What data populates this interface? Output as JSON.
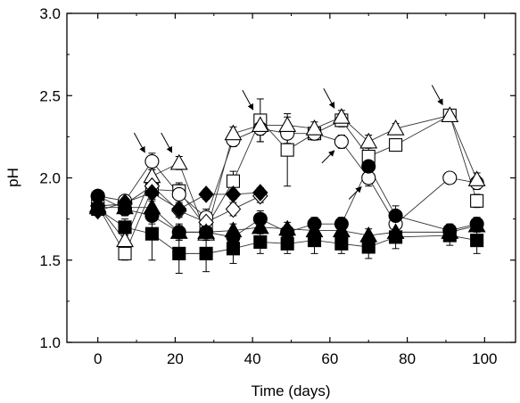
{
  "chart_data": {
    "type": "scatter",
    "xlabel": "Time (days)",
    "ylabel": "pH",
    "xlim": [
      -8,
      108
    ],
    "ylim": [
      1.0,
      3.0
    ],
    "xticks": [
      "0",
      "20",
      "40",
      "60",
      "80",
      "100"
    ],
    "xtick_values": [
      0,
      20,
      40,
      60,
      80,
      100
    ],
    "yticks": [
      "1.0",
      "1.5",
      "2.0",
      "2.5",
      "3.0"
    ],
    "ytick_values": [
      1.0,
      1.5,
      2.0,
      2.5,
      3.0
    ],
    "grid": false,
    "legend": "none",
    "series": [
      {
        "marker": "square",
        "fill": "open",
        "points": [
          [
            0,
            1.83
          ],
          [
            7,
            1.54
          ],
          [
            14,
            1.93
          ],
          [
            21,
            1.92
          ],
          [
            28,
            1.7
          ],
          [
            35,
            1.98
          ],
          [
            42,
            2.35
          ],
          [
            49,
            2.17
          ],
          [
            56,
            2.27
          ],
          [
            63,
            2.35
          ],
          [
            70,
            2.13
          ],
          [
            77,
            2.2
          ],
          [
            91,
            2.38
          ],
          [
            98,
            1.86
          ]
        ],
        "err": [
          0.02,
          0.04,
          0.05,
          0.05,
          0.06,
          0.06,
          0.13,
          0.22,
          0.04,
          0.04,
          0.08,
          0.03,
          0.03,
          0.04
        ]
      },
      {
        "marker": "circle",
        "fill": "open",
        "points": [
          [
            0,
            1.89
          ],
          [
            7,
            1.86
          ],
          [
            14,
            2.1
          ],
          [
            21,
            1.9
          ],
          [
            28,
            1.76
          ],
          [
            35,
            2.23
          ],
          [
            42,
            2.3
          ],
          [
            49,
            2.27
          ],
          [
            56,
            2.27
          ],
          [
            63,
            2.22
          ],
          [
            70,
            2.0
          ],
          [
            77,
            1.72
          ],
          [
            91,
            2.0
          ],
          [
            98,
            1.97
          ]
        ],
        "err": [
          0.02,
          0.03,
          0.05,
          0.06,
          0.05,
          0.04,
          0.08,
          0.06,
          0.04,
          0.04,
          0.05,
          0.05,
          0.03,
          0.04
        ]
      },
      {
        "marker": "triangle",
        "fill": "open",
        "points": [
          [
            0,
            1.83
          ],
          [
            7,
            1.62
          ],
          [
            14,
            2.01
          ],
          [
            21,
            2.09
          ],
          [
            28,
            1.66
          ],
          [
            35,
            2.27
          ],
          [
            42,
            2.32
          ],
          [
            49,
            2.32
          ],
          [
            56,
            2.3
          ],
          [
            63,
            2.37
          ],
          [
            70,
            2.22
          ],
          [
            77,
            2.3
          ],
          [
            91,
            2.38
          ],
          [
            98,
            1.99
          ]
        ],
        "err": [
          0.02,
          0.04,
          0.04,
          0.04,
          0.04,
          0.04,
          0.06,
          0.05,
          0.04,
          0.04,
          0.04,
          0.03,
          0.03,
          0.04
        ]
      },
      {
        "marker": "diamond",
        "fill": "open",
        "points": [
          [
            0,
            1.83
          ],
          [
            7,
            1.84
          ],
          [
            14,
            1.95
          ],
          [
            21,
            1.8
          ],
          [
            28,
            1.73
          ],
          [
            35,
            1.81
          ],
          [
            42,
            1.89
          ]
        ],
        "err": [
          0.02,
          0.03,
          0.04,
          0.04,
          0.04,
          0.04,
          0.04
        ]
      },
      {
        "marker": "square",
        "fill": "filled",
        "points": [
          [
            0,
            1.81
          ],
          [
            7,
            1.7
          ],
          [
            14,
            1.66
          ],
          [
            21,
            1.54
          ],
          [
            28,
            1.54
          ],
          [
            35,
            1.57
          ],
          [
            42,
            1.61
          ],
          [
            49,
            1.6
          ],
          [
            56,
            1.62
          ],
          [
            63,
            1.6
          ],
          [
            70,
            1.58
          ],
          [
            77,
            1.64
          ],
          [
            91,
            1.65
          ],
          [
            98,
            1.62
          ]
        ],
        "err": [
          0.02,
          0.05,
          0.16,
          0.12,
          0.11,
          0.09,
          0.07,
          0.06,
          0.08,
          0.06,
          0.07,
          0.07,
          0.06,
          0.08
        ]
      },
      {
        "marker": "circle",
        "fill": "filled",
        "points": [
          [
            0,
            1.89
          ],
          [
            7,
            1.81
          ],
          [
            14,
            1.77
          ],
          [
            21,
            1.67
          ],
          [
            28,
            1.67
          ],
          [
            35,
            1.64
          ],
          [
            42,
            1.75
          ],
          [
            49,
            1.67
          ],
          [
            56,
            1.72
          ],
          [
            63,
            1.72
          ],
          [
            70,
            2.07
          ],
          [
            77,
            1.77
          ],
          [
            91,
            1.68
          ],
          [
            98,
            1.72
          ]
        ],
        "err": [
          0.02,
          0.04,
          0.05,
          0.05,
          0.04,
          0.04,
          0.05,
          0.04,
          0.04,
          0.04,
          0.05,
          0.06,
          0.04,
          0.04
        ]
      },
      {
        "marker": "triangle",
        "fill": "filled",
        "points": [
          [
            0,
            1.82
          ],
          [
            7,
            1.82
          ],
          [
            14,
            1.82
          ],
          [
            21,
            1.67
          ],
          [
            28,
            1.67
          ],
          [
            35,
            1.68
          ],
          [
            42,
            1.7
          ],
          [
            49,
            1.69
          ],
          [
            56,
            1.68
          ],
          [
            63,
            1.68
          ],
          [
            70,
            1.65
          ],
          [
            77,
            1.67
          ],
          [
            91,
            1.67
          ],
          [
            98,
            1.71
          ]
        ],
        "err": [
          0.02,
          0.03,
          0.04,
          0.04,
          0.04,
          0.04,
          0.04,
          0.04,
          0.04,
          0.04,
          0.04,
          0.04,
          0.04,
          0.04
        ]
      },
      {
        "marker": "diamond",
        "fill": "filled",
        "points": [
          [
            0,
            1.8
          ],
          [
            7,
            1.85
          ],
          [
            14,
            1.91
          ],
          [
            21,
            1.81
          ],
          [
            28,
            1.9
          ],
          [
            35,
            1.9
          ],
          [
            42,
            1.91
          ]
        ],
        "err": [
          0.02,
          0.03,
          0.04,
          0.04,
          0.03,
          0.03,
          0.03
        ]
      }
    ],
    "annotations": [
      {
        "type": "arrow",
        "points_to": [
          14,
          2.1
        ]
      },
      {
        "type": "arrow",
        "points_to": [
          21,
          2.1
        ]
      },
      {
        "type": "arrow",
        "points_to": [
          42,
          2.36
        ]
      },
      {
        "type": "arrow",
        "points_to": [
          63,
          2.37
        ]
      },
      {
        "type": "arrow",
        "points_to": [
          63,
          2.22
        ]
      },
      {
        "type": "arrow",
        "points_to": [
          70,
          2.0
        ]
      },
      {
        "type": "arrow",
        "points_to": [
          91,
          2.39
        ]
      }
    ]
  }
}
